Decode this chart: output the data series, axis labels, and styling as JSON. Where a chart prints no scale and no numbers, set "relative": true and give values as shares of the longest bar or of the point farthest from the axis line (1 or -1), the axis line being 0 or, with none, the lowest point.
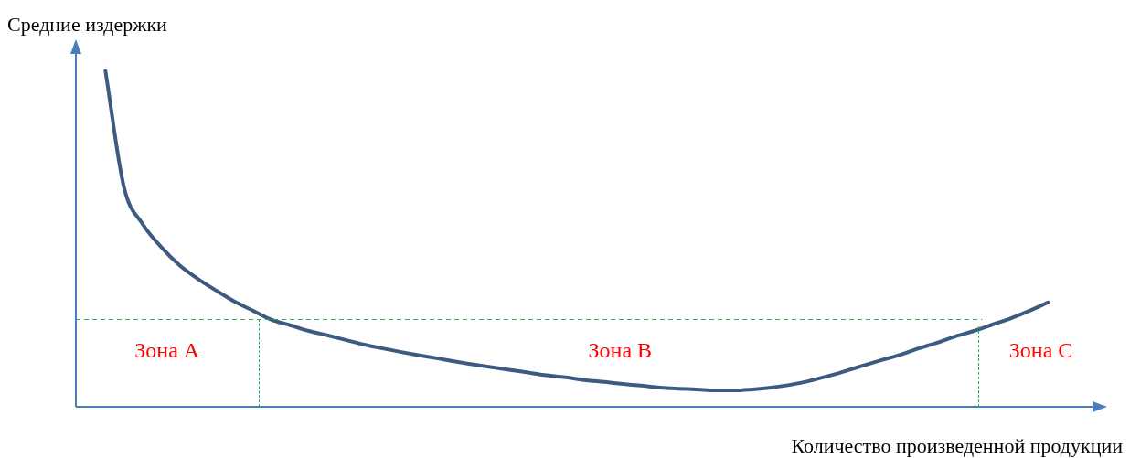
{
  "chart_data": {
    "type": "line",
    "relative": true,
    "xlabel": "Количество произведенной продукции",
    "ylabel": "Средние издержки",
    "categories": [
      null,
      null,
      null,
      null,
      null,
      null,
      null,
      null,
      null,
      null,
      null,
      null,
      null,
      null,
      null,
      null,
      null,
      null,
      null,
      null,
      null,
      null,
      null,
      null,
      null,
      null,
      null,
      null,
      null,
      null,
      null,
      null,
      null,
      null,
      null,
      null,
      null,
      null,
      null,
      null,
      null,
      null,
      null,
      null,
      null,
      null,
      null,
      null,
      null,
      null,
      null,
      null
    ],
    "series": [
      {
        "color": "#3d5a80",
        "values": [
          1.0,
          0.654,
          0.545,
          0.477,
          0.422,
          0.381,
          0.346,
          0.313,
          0.286,
          0.259,
          0.243,
          0.226,
          0.213,
          0.199,
          0.185,
          0.174,
          0.163,
          0.153,
          0.144,
          0.134,
          0.125,
          0.117,
          0.109,
          0.101,
          0.093,
          0.087,
          0.079,
          0.074,
          0.068,
          0.063,
          0.057,
          0.054,
          0.052,
          0.049,
          0.049,
          0.052,
          0.057,
          0.065,
          0.076,
          0.09,
          0.106,
          0.123,
          0.139,
          0.155,
          0.174,
          0.191,
          0.21,
          0.226,
          0.245,
          0.264,
          0.286,
          0.311
        ]
      }
    ],
    "ref_lines": [
      {
        "axis": "y",
        "value": 0.26,
        "color": "#22b14c",
        "line_style": "dashed"
      }
    ],
    "annotations": [
      "Зона A",
      "Зона B",
      "Зона C"
    ],
    "legend": false,
    "marker": "none",
    "line_style": "solid"
  }
}
